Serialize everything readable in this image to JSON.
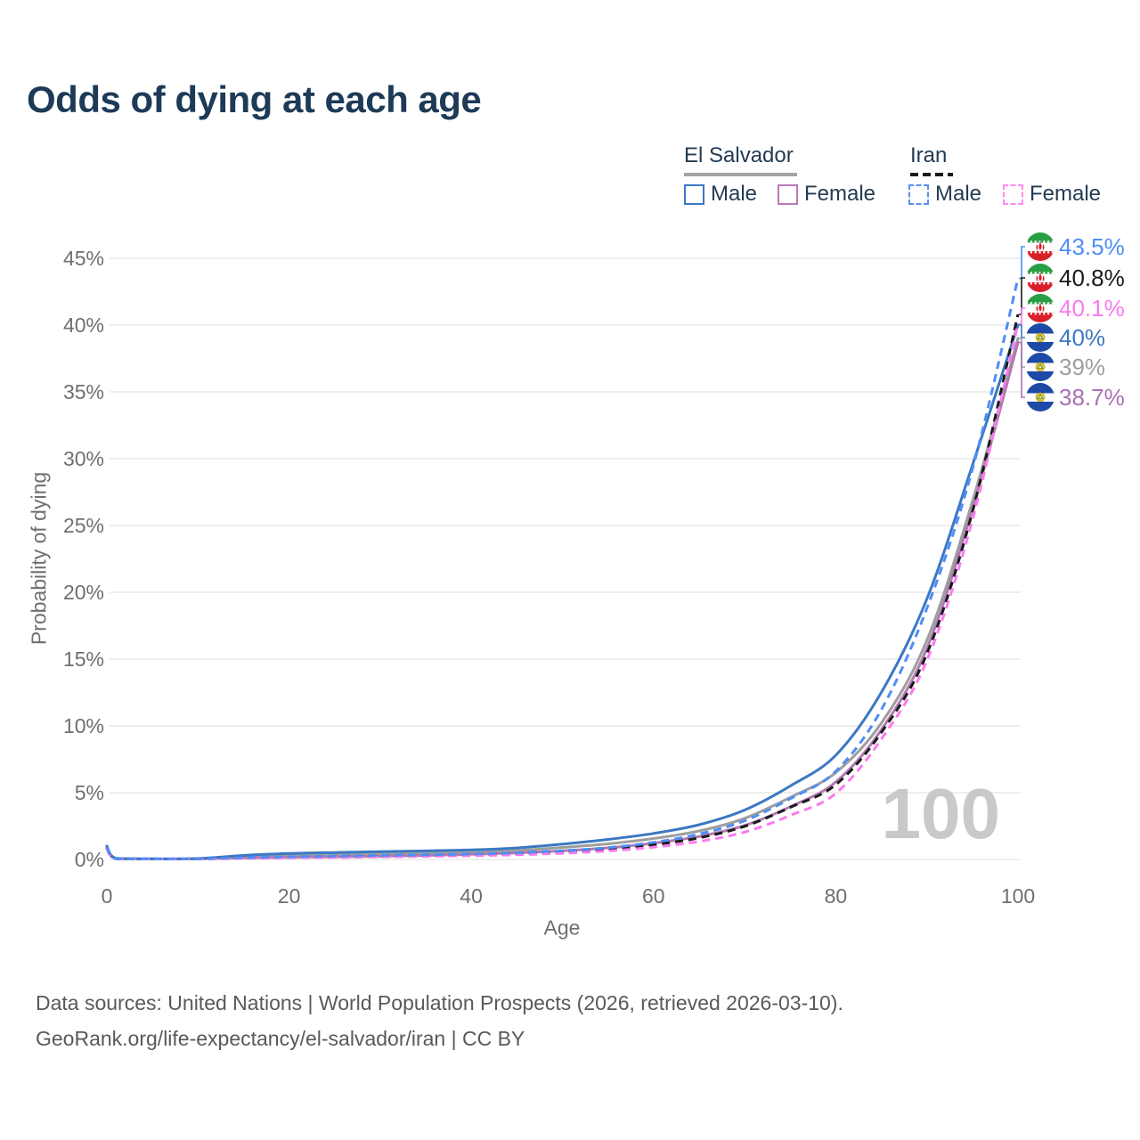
{
  "title": "Odds of dying at each age",
  "watermark": "100",
  "legend": {
    "groups": [
      {
        "name": "El Salvador",
        "line_style": "solid",
        "line_color": "#a3a3a3",
        "items": [
          {
            "label": "Male",
            "color": "#3b78c3",
            "dashed": false
          },
          {
            "label": "Female",
            "color": "#bb7ab8",
            "dashed": false
          }
        ]
      },
      {
        "name": "Iran",
        "line_style": "dashed",
        "line_color": "#1a1a1a",
        "items": [
          {
            "label": "Male",
            "color": "#5b8df2",
            "dashed": true
          },
          {
            "label": "Female",
            "color": "#fc8cf0",
            "dashed": true
          }
        ]
      }
    ]
  },
  "end_labels": [
    {
      "flag": "iran",
      "series": "Iran Male",
      "value": "43.5%",
      "color": "#4f8ef5"
    },
    {
      "flag": "iran",
      "series": "Iran (both sexes)",
      "value": "40.8%",
      "color": "#1a1a1a"
    },
    {
      "flag": "iran",
      "series": "Iran Female",
      "value": "40.1%",
      "color": "#fb7af0"
    },
    {
      "flag": "el-salvador",
      "series": "El Salvador Male",
      "value": "40%",
      "color": "#3b78c3"
    },
    {
      "flag": "el-salvador",
      "series": "El Salvador (both sexes)",
      "value": "39%",
      "color": "#9e9e9e"
    },
    {
      "flag": "el-salvador",
      "series": "El Salvador Female",
      "value": "38.7%",
      "color": "#aa70b5"
    }
  ],
  "footer": {
    "line1": "Data sources: United Nations | World Population Prospects (2026, retrieved 2026-03-10).",
    "line2": "GeoRank.org/life-expectancy/el-salvador/iran | CC BY"
  },
  "chart_data": {
    "type": "line",
    "title": "Odds of dying at each age",
    "xlabel": "Age",
    "ylabel": "Probability of dying",
    "xlim": [
      0,
      100
    ],
    "ylim": [
      0,
      45
    ],
    "grid": true,
    "legend_position": "top-right",
    "xticks": [
      0,
      20,
      40,
      60,
      80,
      100
    ],
    "yticks": [
      0,
      5,
      10,
      15,
      20,
      25,
      30,
      35,
      40,
      45
    ],
    "ytick_labels": [
      "0%",
      "5%",
      "10%",
      "15%",
      "20%",
      "25%",
      "30%",
      "35%",
      "40%",
      "45%"
    ],
    "x": [
      0,
      1,
      5,
      10,
      15,
      20,
      25,
      30,
      35,
      40,
      45,
      50,
      55,
      60,
      65,
      70,
      75,
      80,
      85,
      90,
      95,
      100
    ],
    "series": [
      {
        "name": "El Salvador (both sexes)",
        "country": "El Salvador",
        "sex": "Both",
        "color": "#9e9e9e",
        "dash": null,
        "end_value_pct": 39,
        "values": [
          0.9,
          0.08,
          0.04,
          0.06,
          0.2,
          0.3,
          0.36,
          0.41,
          0.47,
          0.55,
          0.67,
          0.9,
          1.17,
          1.57,
          2.13,
          3.08,
          4.65,
          6.5,
          10.2,
          16.4,
          26.8,
          39.0
        ]
      },
      {
        "name": "El Salvador Female",
        "country": "El Salvador",
        "sex": "Female",
        "color": "#b279b2",
        "dash": null,
        "end_value_pct": 38.7,
        "values": [
          0.8,
          0.07,
          0.04,
          0.05,
          0.12,
          0.16,
          0.2,
          0.24,
          0.3,
          0.38,
          0.49,
          0.65,
          0.87,
          1.22,
          1.72,
          2.55,
          3.95,
          5.8,
          9.7,
          15.8,
          26.2,
          38.7
        ]
      },
      {
        "name": "El Salvador Male",
        "country": "El Salvador",
        "sex": "Male",
        "color": "#3b78c3",
        "dash": null,
        "end_value_pct": 40,
        "values": [
          1.0,
          0.09,
          0.05,
          0.07,
          0.3,
          0.45,
          0.52,
          0.58,
          0.64,
          0.72,
          0.86,
          1.15,
          1.5,
          1.95,
          2.6,
          3.7,
          5.5,
          7.8,
          12.5,
          19.5,
          29.5,
          40.0
        ]
      },
      {
        "name": "Iran (both sexes)",
        "country": "Iran",
        "sex": "Both",
        "color": "#1a1a1a",
        "dash": "9 6",
        "end_value_pct": 40.8,
        "values": [
          0.85,
          0.055,
          0.03,
          0.045,
          0.1,
          0.16,
          0.2,
          0.24,
          0.28,
          0.34,
          0.42,
          0.55,
          0.75,
          1.1,
          1.62,
          2.48,
          3.9,
          5.6,
          9.5,
          15.4,
          26.0,
          40.8
        ]
      },
      {
        "name": "Iran Female",
        "country": "Iran",
        "sex": "Female",
        "color": "#fb7af0",
        "dash": "9 6",
        "end_value_pct": 40.1,
        "values": [
          0.8,
          0.05,
          0.03,
          0.04,
          0.08,
          0.12,
          0.15,
          0.19,
          0.23,
          0.28,
          0.35,
          0.46,
          0.63,
          0.92,
          1.35,
          2.05,
          3.3,
          4.95,
          9.0,
          14.9,
          25.4,
          40.1
        ]
      },
      {
        "name": "Iran Male",
        "country": "Iran",
        "sex": "Male",
        "color": "#4f8ef5",
        "dash": "9 6",
        "end_value_pct": 43.5,
        "values": [
          0.9,
          0.06,
          0.04,
          0.05,
          0.13,
          0.2,
          0.25,
          0.3,
          0.35,
          0.41,
          0.5,
          0.65,
          0.88,
          1.28,
          1.9,
          2.9,
          4.55,
          6.6,
          11.2,
          18.8,
          29.2,
          43.5
        ]
      }
    ]
  }
}
